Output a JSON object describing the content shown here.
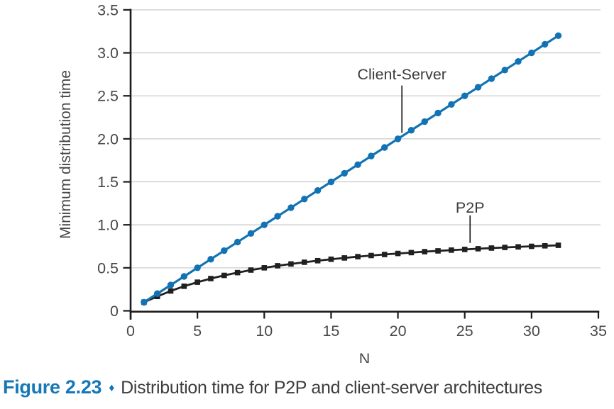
{
  "figure": {
    "caption_label": "Figure 2.23",
    "caption_separator": "♦",
    "caption_text": "Distribution time for P2P and client-server architectures"
  },
  "colors": {
    "client_server_blue": "#1273b4",
    "p2p_black": "#202020",
    "caption_blue": "#1478b8",
    "gridline_gray": "#cbcbcb",
    "axis_black": "#1c1c1c",
    "tick_text_gray": "#474747",
    "annotation_text_gray": "#3c3c3c"
  },
  "chart_data": {
    "type": "line",
    "title": "",
    "xlabel": "N",
    "ylabel": "Minimum distribution time",
    "xlim": [
      0,
      35
    ],
    "ylim": [
      0,
      3.5
    ],
    "xticks": [
      0,
      5,
      10,
      15,
      20,
      25,
      30,
      35
    ],
    "xtick_labels": [
      "0",
      "5",
      "10",
      "15",
      "20",
      "25",
      "30",
      "35"
    ],
    "yticks": [
      0,
      0.5,
      1,
      1.5,
      2,
      2.5,
      3,
      3.5
    ],
    "ytick_labels": [
      "0",
      "0.5",
      "1.0",
      "1.5",
      "2.0",
      "2.5",
      "3.0",
      "3.5"
    ],
    "grid": "horizontal",
    "legend": "inline-annotations",
    "x": [
      1,
      2,
      3,
      4,
      5,
      6,
      7,
      8,
      9,
      10,
      11,
      12,
      13,
      14,
      15,
      16,
      17,
      18,
      19,
      20,
      21,
      22,
      23,
      24,
      25,
      26,
      27,
      28,
      29,
      30,
      31,
      32
    ],
    "series": [
      {
        "name": "Client-Server",
        "marker": "circle",
        "color": "#1273b4",
        "values": [
          0.1,
          0.2,
          0.3,
          0.4,
          0.5,
          0.6,
          0.7,
          0.8,
          0.9,
          1.0,
          1.1,
          1.2,
          1.3,
          1.4,
          1.5,
          1.6,
          1.7,
          1.8,
          1.9,
          2.0,
          2.1,
          2.2,
          2.3,
          2.4,
          2.5,
          2.6,
          2.7,
          2.8,
          2.9,
          3.0,
          3.1,
          3.2
        ]
      },
      {
        "name": "P2P",
        "marker": "square",
        "color": "#202020",
        "values": [
          0.1,
          0.167,
          0.231,
          0.286,
          0.333,
          0.375,
          0.412,
          0.444,
          0.474,
          0.5,
          0.524,
          0.545,
          0.565,
          0.583,
          0.6,
          0.615,
          0.63,
          0.643,
          0.655,
          0.667,
          0.677,
          0.688,
          0.697,
          0.706,
          0.714,
          0.722,
          0.73,
          0.737,
          0.744,
          0.75,
          0.756,
          0.762
        ]
      }
    ],
    "annotations": [
      {
        "text": "Client-Server",
        "x": 20.3,
        "text_y": 2.69,
        "line_from": 2.62,
        "line_to": 2.07
      },
      {
        "text": "P2P",
        "x": 25.4,
        "text_y": 1.14,
        "line_from": 1.11,
        "line_to": 0.79
      }
    ]
  }
}
